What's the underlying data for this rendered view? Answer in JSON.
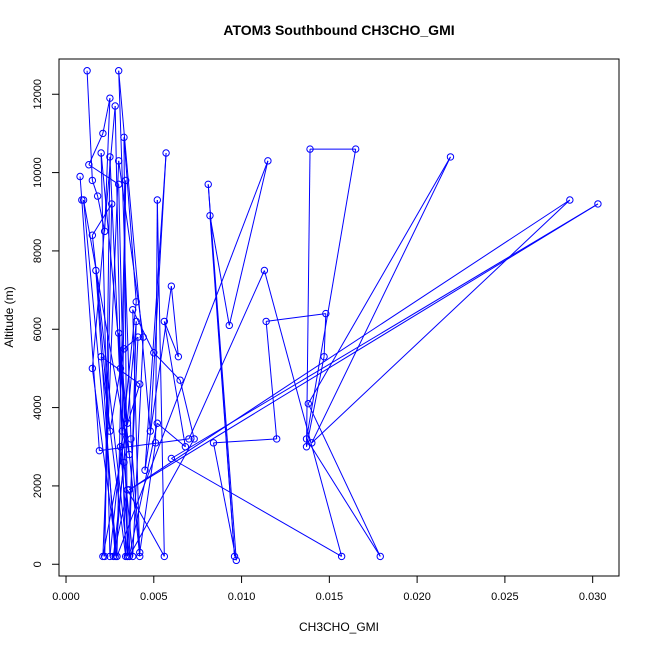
{
  "chart_data": {
    "type": "line",
    "title": "ATOM3 Southbound CH3CHO_GMI",
    "xlabel": "CH3CHO_GMI",
    "ylabel": "Altitude (m)",
    "xlim": [
      -0.0004,
      0.0315
    ],
    "ylim": [
      -300,
      12900
    ],
    "xticks": [
      0.0,
      0.005,
      0.01,
      0.015,
      0.02,
      0.025,
      0.03
    ],
    "xtick_labels": [
      "0.000",
      "0.005",
      "0.010",
      "0.015",
      "0.020",
      "0.025",
      "0.030"
    ],
    "yticks": [
      0,
      2000,
      4000,
      6000,
      8000,
      10000,
      12000
    ],
    "ytick_labels": [
      "0",
      "2000",
      "4000",
      "6000",
      "8000",
      "10000",
      "12000"
    ],
    "grid": false,
    "series_color": "#0000ff",
    "marker": "open-circle",
    "series": [
      {
        "x": [
          0.0012,
          0.0015,
          0.0018,
          0.0022,
          0.0025,
          0.0021,
          0.0013,
          0.003,
          0.0035,
          0.0033,
          0.004,
          0.0025,
          0.002,
          0.0036,
          0.001,
          0.0029,
          0.0034,
          0.0032,
          0.0025,
          0.0022,
          0.0026,
          0.0015,
          0.0035,
          0.0041,
          0.0033,
          0.0025,
          0.0017,
          0.0028,
          0.004,
          0.0036,
          0.0031,
          0.0042,
          0.002,
          0.0034,
          0.003,
          0.0035,
          0.0021,
          0.003,
          0.0044,
          0.0038,
          0.0033,
          0.0027,
          0.0035,
          0.0056,
          0.0052,
          0.0051,
          0.0042,
          0.0037,
          0.003,
          0.0048,
          0.0057,
          0.0045,
          0.006,
          0.0064,
          0.0056,
          0.0068,
          0.0052,
          0.0036,
          0.0073,
          0.0065,
          0.005,
          0.0038,
          0.0042,
          0.0031,
          0.0028,
          0.0015,
          0.0029,
          0.0115,
          0.0093,
          0.0082,
          0.0096,
          0.0081,
          0.0097,
          0.0084,
          0.012,
          0.0114,
          0.0148,
          0.0147,
          0.0137,
          0.0139,
          0.0165,
          0.0137,
          0.0179,
          0.0138,
          0.0219,
          0.014,
          0.0287,
          0.0036,
          0.0303,
          0.006,
          0.0157,
          0.0113,
          0.007,
          0.0019,
          0.0009,
          0.0008
        ],
        "y": [
          12600,
          9800,
          9400,
          8500,
          11900,
          11000,
          10200,
          9700,
          200,
          10900,
          6700,
          200,
          10500,
          2800,
          9300,
          200,
          9800,
          3400,
          10400,
          200,
          9200,
          8400,
          200,
          5800,
          5500,
          3400,
          7500,
          200,
          6200,
          200,
          3000,
          4600,
          5300,
          200,
          5900,
          3600,
          200,
          10300,
          5800,
          200,
          2600,
          200,
          1900,
          200,
          9300,
          3100,
          300,
          3200,
          12600,
          3400,
          10500,
          2400,
          7100,
          5300,
          6200,
          3000,
          3600,
          200,
          3200,
          4700,
          5400,
          6500,
          200,
          5000,
          11700,
          5000,
          200,
          10300,
          6100,
          8900,
          200,
          9700,
          100,
          3100,
          3200,
          6200,
          6400,
          5300,
          3000,
          10600,
          10600,
          3200,
          200,
          4100,
          10400,
          3100,
          9300,
          1900,
          9200,
          2700,
          200,
          7500,
          3200,
          2900,
          9300,
          9900
        ]
      }
    ]
  }
}
